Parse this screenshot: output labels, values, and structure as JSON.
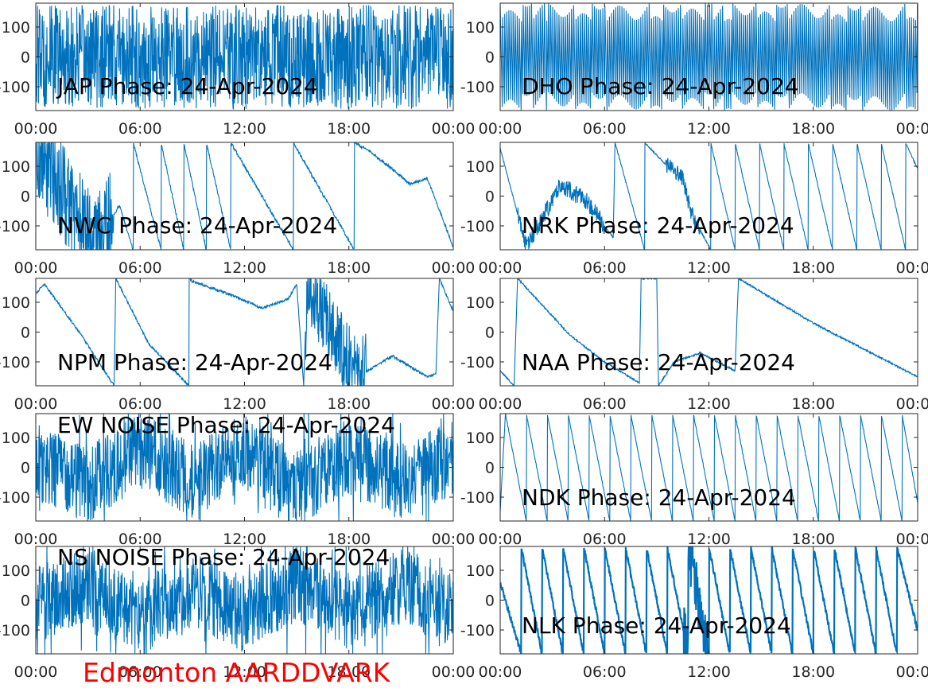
{
  "figure": {
    "station_label": "Edmonton AARDDVARK",
    "station_color": "#ff0000",
    "trace_color": "#0072bd",
    "axes_color": "#262626"
  },
  "chart_data": [
    {
      "type": "line",
      "title": "JAP Phase: 24-Apr-2024",
      "xlim": [
        "00:00",
        "24:00"
      ],
      "ylim": [
        -180,
        180
      ],
      "x_ticks": [
        "00:00",
        "06:00",
        "12:00",
        "18:00",
        "00:00"
      ],
      "y_ticks": [
        "-100",
        "0",
        "100"
      ],
      "grid": false,
      "pattern": "noisy",
      "series": [
        {
          "points": [
            [
              0.0,
              160
            ],
            [
              1.5,
              -170
            ],
            [
              3.0,
              175
            ],
            [
              4.5,
              -160
            ],
            [
              6.0,
              150
            ],
            [
              7.5,
              -175
            ],
            [
              9.0,
              170
            ],
            [
              12.0,
              -160
            ],
            [
              15.0,
              165
            ],
            [
              18.0,
              -170
            ],
            [
              21.0,
              160
            ],
            [
              24.0,
              40
            ]
          ]
        }
      ]
    },
    {
      "type": "line",
      "title": "DHO Phase: 24-Apr-2024",
      "xlim": [
        "00:00",
        "24:00"
      ],
      "ylim": [
        -180,
        180
      ],
      "x_ticks": [
        "00:00",
        "06:00",
        "12:00",
        "18:00",
        "00:00"
      ],
      "y_ticks": [
        "-100",
        "0",
        "100"
      ],
      "grid": false,
      "pattern": "rapid",
      "series": [
        {
          "points": [
            [
              0.0,
              180
            ],
            [
              0.25,
              -180
            ],
            [
              12.0,
              180
            ],
            [
              24.0,
              -180
            ]
          ]
        }
      ]
    },
    {
      "type": "line",
      "title": "NWC Phase: 24-Apr-2024",
      "xlim": [
        "00:00",
        "24:00"
      ],
      "ylim": [
        -180,
        180
      ],
      "x_ticks": [
        "00:00",
        "06:00",
        "12:00",
        "18:00",
        "00:00"
      ],
      "y_ticks": [
        "-100",
        "0",
        "100"
      ],
      "grid": false,
      "pattern": "mixed",
      "series": [
        {
          "points": [
            [
              0.0,
              160
            ],
            [
              3.5,
              -170
            ],
            [
              4.8,
              -30
            ],
            [
              5.6,
              -180
            ],
            [
              5.6,
              180
            ],
            [
              7.2,
              -180
            ],
            [
              7.2,
              180
            ],
            [
              8.5,
              -180
            ],
            [
              8.5,
              180
            ],
            [
              9.8,
              -180
            ],
            [
              9.8,
              180
            ],
            [
              11.2,
              -180
            ],
            [
              11.2,
              180
            ],
            [
              14.8,
              -180
            ],
            [
              14.8,
              180
            ],
            [
              18.3,
              -180
            ],
            [
              18.3,
              180
            ],
            [
              19.2,
              150
            ],
            [
              20.5,
              90
            ],
            [
              21.5,
              40
            ],
            [
              22.5,
              60
            ],
            [
              24.0,
              -170
            ]
          ]
        }
      ]
    },
    {
      "type": "line",
      "title": "NRK Phase: 24-Apr-2024",
      "xlim": [
        "00:00",
        "24:00"
      ],
      "ylim": [
        -180,
        180
      ],
      "x_ticks": [
        "00:00",
        "06:00",
        "12:00",
        "18:00",
        "00:00"
      ],
      "y_ticks": [
        "-100",
        "0",
        "100"
      ],
      "grid": false,
      "pattern": "sawtooth",
      "series": [
        {
          "points": [
            [
              0.0,
              160
            ],
            [
              1.5,
              -170
            ],
            [
              3.5,
              40
            ],
            [
              5.0,
              -20
            ],
            [
              6.5,
              -140
            ],
            [
              6.6,
              180
            ],
            [
              8.3,
              -180
            ],
            [
              8.3,
              180
            ],
            [
              9.6,
              100
            ],
            [
              10.5,
              60
            ],
            [
              11.0,
              -60
            ],
            [
              12.1,
              -180
            ],
            [
              12.1,
              180
            ],
            [
              13.5,
              -180
            ],
            [
              13.5,
              180
            ],
            [
              14.9,
              -180
            ],
            [
              14.9,
              180
            ],
            [
              16.3,
              -180
            ],
            [
              16.3,
              180
            ],
            [
              17.7,
              -180
            ],
            [
              17.7,
              180
            ],
            [
              19.1,
              -180
            ],
            [
              19.1,
              180
            ],
            [
              20.5,
              -180
            ],
            [
              20.5,
              180
            ],
            [
              21.9,
              -180
            ],
            [
              21.9,
              180
            ],
            [
              23.3,
              -180
            ],
            [
              23.3,
              180
            ],
            [
              24.0,
              90
            ]
          ]
        }
      ]
    },
    {
      "type": "line",
      "title": "NPM Phase: 24-Apr-2024",
      "xlim": [
        "00:00",
        "24:00"
      ],
      "ylim": [
        -180,
        180
      ],
      "x_ticks": [
        "00:00",
        "06:00",
        "12:00",
        "18:00",
        "00:00"
      ],
      "y_ticks": [
        "-100",
        "0",
        "100"
      ],
      "grid": false,
      "pattern": "npm",
      "series": [
        {
          "points": [
            [
              0.0,
              130
            ],
            [
              0.5,
              160
            ],
            [
              2.5,
              0
            ],
            [
              4.5,
              -180
            ],
            [
              4.6,
              180
            ],
            [
              6.5,
              -40
            ],
            [
              8.8,
              -180
            ],
            [
              8.8,
              180
            ],
            [
              9.0,
              170
            ],
            [
              11.0,
              130
            ],
            [
              13.0,
              80
            ],
            [
              14.5,
              110
            ],
            [
              15.0,
              160
            ],
            [
              15.4,
              -180
            ],
            [
              15.6,
              180
            ],
            [
              17.0,
              0
            ],
            [
              18.5,
              -150
            ],
            [
              20.5,
              -80
            ],
            [
              22.5,
              -150
            ],
            [
              23.0,
              -140
            ],
            [
              23.2,
              180
            ],
            [
              24.0,
              70
            ]
          ]
        }
      ]
    },
    {
      "type": "line",
      "title": "NAA Phase: 24-Apr-2024",
      "xlim": [
        "00:00",
        "24:00"
      ],
      "ylim": [
        -180,
        180
      ],
      "x_ticks": [
        "00:00",
        "06:00",
        "12:00",
        "18:00",
        "00:00"
      ],
      "y_ticks": [
        "-100",
        "0",
        "100"
      ],
      "grid": false,
      "pattern": "naa",
      "series": [
        {
          "points": [
            [
              0.0,
              -130
            ],
            [
              0.8,
              -180
            ],
            [
              1.0,
              180
            ],
            [
              4.0,
              -10
            ],
            [
              6.0,
              -100
            ],
            [
              8.0,
              -170
            ],
            [
              8.1,
              180
            ],
            [
              9.0,
              180
            ],
            [
              9.1,
              -180
            ],
            [
              10.0,
              -100
            ],
            [
              11.5,
              -70
            ],
            [
              13.5,
              -130
            ],
            [
              13.7,
              180
            ],
            [
              18.0,
              30
            ],
            [
              24.0,
              -150
            ]
          ]
        }
      ]
    },
    {
      "type": "line",
      "title": "EW NOISE Phase: 24-Apr-2024",
      "xlim": [
        "00:00",
        "24:00"
      ],
      "ylim": [
        -180,
        180
      ],
      "x_ticks": [
        "00:00",
        "06:00",
        "12:00",
        "18:00",
        "00:00"
      ],
      "y_ticks": [
        "-100",
        "0",
        "100"
      ],
      "grid": false,
      "pattern": "noise",
      "series": [
        {
          "points": [
            [
              0.0,
              20
            ],
            [
              3.0,
              -60
            ],
            [
              6.0,
              60
            ],
            [
              9.0,
              -40
            ],
            [
              12.0,
              50
            ],
            [
              15.0,
              -70
            ],
            [
              18.0,
              40
            ],
            [
              21.0,
              -50
            ],
            [
              24.0,
              30
            ]
          ]
        }
      ]
    },
    {
      "type": "line",
      "title": "NDK Phase: 24-Apr-2024",
      "xlim": [
        "00:00",
        "24:00"
      ],
      "ylim": [
        -180,
        180
      ],
      "x_ticks": [
        "00:00",
        "06:00",
        "12:00",
        "18:00",
        "00:00"
      ],
      "y_ticks": [
        "-100",
        "0",
        "100"
      ],
      "grid": false,
      "pattern": "sawtooth-fast",
      "series": [
        {
          "points": [
            [
              0.0,
              -150
            ],
            [
              0.3,
              180
            ],
            [
              1.5,
              -180
            ],
            [
              1.5,
              180
            ],
            [
              2.7,
              -180
            ],
            [
              2.7,
              180
            ],
            [
              3.9,
              -180
            ],
            [
              3.9,
              180
            ],
            [
              5.1,
              -180
            ],
            [
              5.1,
              180
            ],
            [
              6.3,
              -180
            ],
            [
              6.3,
              180
            ],
            [
              7.5,
              -180
            ],
            [
              7.5,
              180
            ],
            [
              8.7,
              -180
            ],
            [
              8.7,
              180
            ],
            [
              9.9,
              -180
            ],
            [
              9.9,
              180
            ],
            [
              11.1,
              -180
            ],
            [
              11.1,
              180
            ],
            [
              12.3,
              -180
            ],
            [
              12.3,
              180
            ],
            [
              13.5,
              -180
            ],
            [
              13.5,
              180
            ],
            [
              14.7,
              -180
            ],
            [
              14.7,
              180
            ],
            [
              15.9,
              -180
            ],
            [
              15.9,
              180
            ],
            [
              17.1,
              -180
            ],
            [
              17.1,
              180
            ],
            [
              18.3,
              -180
            ],
            [
              18.3,
              180
            ],
            [
              19.5,
              -180
            ],
            [
              19.5,
              180
            ],
            [
              20.7,
              -180
            ],
            [
              20.7,
              180
            ],
            [
              21.9,
              -180
            ],
            [
              21.9,
              180
            ],
            [
              23.1,
              -180
            ],
            [
              23.1,
              180
            ],
            [
              24.0,
              -120
            ]
          ]
        }
      ]
    },
    {
      "type": "line",
      "title": "NS NOISE Phase: 24-Apr-2024",
      "xlim": [
        "00:00",
        "24:00"
      ],
      "ylim": [
        -180,
        180
      ],
      "x_ticks": [
        "00:00",
        "06:00",
        "12:00",
        "18:00",
        "00:00"
      ],
      "y_ticks": [
        "-100",
        "0",
        "100"
      ],
      "grid": false,
      "pattern": "noise",
      "series": [
        {
          "points": [
            [
              0.0,
              -20
            ],
            [
              3.0,
              50
            ],
            [
              6.0,
              -60
            ],
            [
              9.0,
              40
            ],
            [
              12.0,
              -50
            ],
            [
              15.0,
              60
            ],
            [
              18.0,
              -40
            ],
            [
              21.0,
              50
            ],
            [
              24.0,
              -30
            ]
          ]
        }
      ]
    },
    {
      "type": "line",
      "title": "NLK Phase: 24-Apr-2024",
      "xlim": [
        "00:00",
        "24:00"
      ],
      "ylim": [
        -180,
        180
      ],
      "x_ticks": [
        "00:00",
        "06:00",
        "12:00",
        "18:00",
        "00:00"
      ],
      "y_ticks": [
        "-100",
        "0",
        "100"
      ],
      "grid": false,
      "pattern": "sawtooth-thick",
      "series": [
        {
          "points": [
            [
              0.0,
              60
            ],
            [
              1.2,
              -180
            ],
            [
              1.2,
              180
            ],
            [
              2.4,
              -180
            ],
            [
              2.4,
              180
            ],
            [
              3.6,
              -180
            ],
            [
              3.6,
              180
            ],
            [
              4.8,
              -180
            ],
            [
              4.8,
              180
            ],
            [
              6.0,
              -180
            ],
            [
              6.0,
              180
            ],
            [
              7.2,
              -180
            ],
            [
              7.2,
              180
            ],
            [
              8.4,
              -180
            ],
            [
              8.4,
              180
            ],
            [
              9.6,
              -180
            ],
            [
              9.6,
              180
            ],
            [
              10.8,
              -180
            ],
            [
              10.8,
              180
            ],
            [
              12.0,
              -180
            ],
            [
              12.0,
              180
            ],
            [
              13.2,
              -180
            ],
            [
              13.2,
              180
            ],
            [
              14.4,
              -180
            ],
            [
              14.4,
              180
            ],
            [
              15.6,
              -180
            ],
            [
              15.6,
              180
            ],
            [
              16.8,
              -180
            ],
            [
              16.8,
              180
            ],
            [
              18.0,
              -180
            ],
            [
              18.0,
              180
            ],
            [
              19.2,
              -180
            ],
            [
              19.2,
              180
            ],
            [
              20.4,
              -180
            ],
            [
              20.4,
              180
            ],
            [
              21.6,
              -180
            ],
            [
              21.6,
              180
            ],
            [
              22.8,
              -180
            ],
            [
              22.8,
              180
            ],
            [
              24.0,
              -100
            ]
          ]
        }
      ]
    }
  ]
}
